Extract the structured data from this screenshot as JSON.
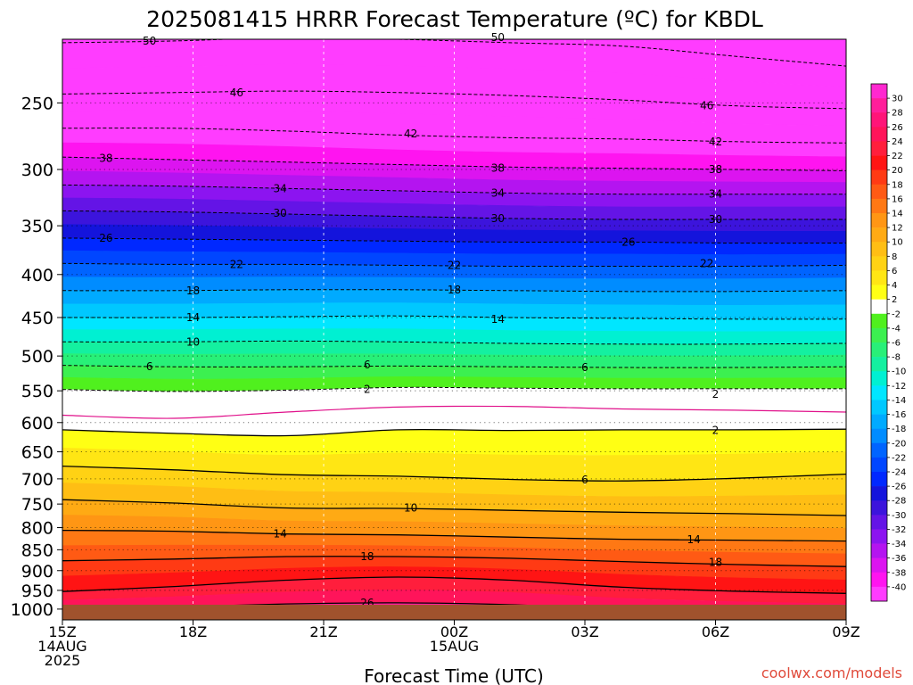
{
  "title": "2025081415 HRRR Forecast Temperature (ºC) for KBDL",
  "credit": "coolwx.com/models",
  "colors": {
    "ground": "#a0522d",
    "freezing_line": "#e0108a"
  },
  "chart_data": {
    "type": "heatmap",
    "title": "2025081415 HRRR Forecast Temperature (ºC) for KBDL",
    "xlabel": "Forecast Time (UTC)",
    "ylabel": "",
    "y_scale": "log pressure (hPa), inverted",
    "ylim": [
      1030,
      210
    ],
    "xlim": [
      0,
      18
    ],
    "y_ticks": [
      250,
      300,
      350,
      400,
      450,
      500,
      550,
      600,
      650,
      700,
      750,
      800,
      850,
      900,
      950,
      1000
    ],
    "x_ticks": [
      {
        "h": 0,
        "lines": [
          "15Z",
          "14AUG",
          "2025"
        ]
      },
      {
        "h": 3,
        "lines": [
          "18Z"
        ]
      },
      {
        "h": 6,
        "lines": [
          "21Z"
        ]
      },
      {
        "h": 9,
        "lines": [
          "00Z",
          "15AUG"
        ]
      },
      {
        "h": 12,
        "lines": [
          "03Z"
        ]
      },
      {
        "h": 15,
        "lines": [
          "06Z"
        ]
      },
      {
        "h": 18,
        "lines": [
          "09Z"
        ]
      }
    ],
    "grid": true,
    "colorbar_ticks": [
      "30",
      "28",
      "26",
      "24",
      "22",
      "20",
      "18",
      "16",
      "14",
      "12",
      "10",
      "8",
      "6",
      "4",
      "2",
      "-2",
      "-4",
      "-6",
      "-8",
      "-10",
      "-12",
      "-14",
      "-16",
      "-18",
      "-20",
      "-22",
      "-24",
      "-26",
      "-28",
      "-30",
      "-32",
      "-34",
      "-36",
      "-38",
      "-40"
    ],
    "colorbar_colors": [
      "#ff28d0",
      "#ff1e9a",
      "#ff1478",
      "#ff145a",
      "#ff1e3c",
      "#ff1414",
      "#ff3a14",
      "#ff5a14",
      "#ff7814",
      "#ff9614",
      "#ffaa14",
      "#ffbe14",
      "#ffd214",
      "#ffe614",
      "#ffff14",
      "#ffffff",
      "#50f01e",
      "#3cf050",
      "#28f078",
      "#14f0a0",
      "#00f0d2",
      "#00e6ff",
      "#00c8ff",
      "#00aaff",
      "#008cff",
      "#0064ff",
      "#0046ff",
      "#0028ff",
      "#1414dc",
      "#3c14dc",
      "#6414e6",
      "#8c14f0",
      "#b414f0",
      "#dc14f0",
      "#ff14f0",
      "#ff3cff"
    ],
    "contour_levels": [
      -50,
      -46,
      -42,
      -38,
      -34,
      -30,
      -26,
      -22,
      -18,
      -14,
      -10,
      -6,
      -2,
      2,
      6,
      10,
      14,
      18,
      22,
      26
    ],
    "contours": [
      {
        "value": -50,
        "p": [
          212,
          211,
          209,
          210,
          212,
          214,
          220,
          226
        ]
      },
      {
        "value": -46,
        "p": [
          244,
          243,
          242,
          243,
          245,
          248,
          252,
          254
        ]
      },
      {
        "value": -42,
        "p": [
          268,
          268,
          270,
          273,
          275,
          276,
          278,
          279
        ]
      },
      {
        "value": -38,
        "p": [
          290,
          292,
          294,
          296,
          298,
          299,
          300,
          301
        ]
      },
      {
        "value": -34,
        "p": [
          313,
          314,
          316,
          318,
          320,
          321,
          321,
          321
        ]
      },
      {
        "value": -30,
        "p": [
          336,
          337,
          339,
          341,
          343,
          344,
          344,
          344
        ]
      },
      {
        "value": -26,
        "p": [
          362,
          363,
          364,
          365,
          366,
          366,
          367,
          367
        ]
      },
      {
        "value": -22,
        "p": [
          388,
          389,
          389,
          390,
          391,
          391,
          391,
          390
        ]
      },
      {
        "value": -18,
        "p": [
          418,
          418,
          417,
          417,
          418,
          419,
          419,
          418
        ]
      },
      {
        "value": -14,
        "p": [
          450,
          450,
          449,
          448,
          450,
          451,
          452,
          452
        ]
      },
      {
        "value": -10,
        "p": [
          481,
          481,
          480,
          481,
          483,
          484,
          484,
          483
        ]
      },
      {
        "value": -6,
        "p": [
          513,
          515,
          515,
          514,
          515,
          516,
          516,
          515
        ]
      },
      {
        "value": -2,
        "p": [
          548,
          551,
          549,
          545,
          546,
          547,
          547,
          547
        ]
      },
      {
        "value": 2,
        "p": [
          612,
          618,
          622,
          612,
          613,
          612,
          612,
          611
        ]
      },
      {
        "value": 6,
        "p": [
          676,
          683,
          692,
          695,
          701,
          704,
          699,
          691
        ]
      },
      {
        "value": 10,
        "p": [
          741,
          748,
          758,
          759,
          763,
          767,
          770,
          774
        ]
      },
      {
        "value": 14,
        "p": [
          806,
          808,
          814,
          816,
          821,
          826,
          828,
          830
        ]
      },
      {
        "value": 18,
        "p": [
          876,
          872,
          866,
          866,
          870,
          878,
          885,
          890
        ]
      },
      {
        "value": 22,
        "p": [
          953,
          940,
          924,
          916,
          924,
          942,
          952,
          958
        ]
      },
      {
        "value": 26,
        "p": [
          1000,
          994,
          986,
          983,
          988,
          1000,
          1008,
          1015
        ]
      }
    ],
    "freezing_line_p": [
      588,
      593,
      583,
      575,
      574,
      578,
      580,
      583
    ],
    "contour_labels": [
      {
        "t": "50",
        "h": 2,
        "p": 211
      },
      {
        "t": "50",
        "h": 10,
        "p": 209
      },
      {
        "t": "46",
        "h": 4,
        "p": 243
      },
      {
        "t": "46",
        "h": 14.8,
        "p": 252
      },
      {
        "t": "42",
        "h": 8,
        "p": 272
      },
      {
        "t": "42",
        "h": 15,
        "p": 278
      },
      {
        "t": "38",
        "h": 1,
        "p": 291
      },
      {
        "t": "38",
        "h": 10,
        "p": 299
      },
      {
        "t": "38",
        "h": 15,
        "p": 300
      },
      {
        "t": "34",
        "h": 5,
        "p": 316
      },
      {
        "t": "34",
        "h": 10,
        "p": 320
      },
      {
        "t": "34",
        "h": 15,
        "p": 321
      },
      {
        "t": "30",
        "h": 5,
        "p": 338
      },
      {
        "t": "30",
        "h": 10,
        "p": 343
      },
      {
        "t": "30",
        "h": 15,
        "p": 344
      },
      {
        "t": "26",
        "h": 1,
        "p": 362
      },
      {
        "t": "26",
        "h": 13,
        "p": 366
      },
      {
        "t": "22",
        "h": 4,
        "p": 389
      },
      {
        "t": "22",
        "h": 9,
        "p": 390
      },
      {
        "t": "22",
        "h": 14.8,
        "p": 388
      },
      {
        "t": "18",
        "h": 3,
        "p": 418
      },
      {
        "t": "18",
        "h": 9,
        "p": 417
      },
      {
        "t": "14",
        "h": 3,
        "p": 450
      },
      {
        "t": "14",
        "h": 10,
        "p": 452
      },
      {
        "t": "10",
        "h": 3,
        "p": 481
      },
      {
        "t": "6",
        "h": 2,
        "p": 515
      },
      {
        "t": "6",
        "h": 7,
        "p": 512
      },
      {
        "t": "6",
        "h": 12,
        "p": 516
      },
      {
        "t": "2",
        "h": 7,
        "p": 548
      },
      {
        "t": "2",
        "h": 15,
        "p": 555
      },
      {
        "t": "2",
        "h": 15,
        "p": 613
      },
      {
        "t": "6",
        "h": 12,
        "p": 702
      },
      {
        "t": "10",
        "h": 8,
        "p": 758
      },
      {
        "t": "14",
        "h": 5,
        "p": 814
      },
      {
        "t": "14",
        "h": 14.5,
        "p": 827
      },
      {
        "t": "18",
        "h": 7,
        "p": 866
      },
      {
        "t": "18",
        "h": 15,
        "p": 880
      },
      {
        "t": "26",
        "h": 7,
        "p": 983
      }
    ]
  }
}
